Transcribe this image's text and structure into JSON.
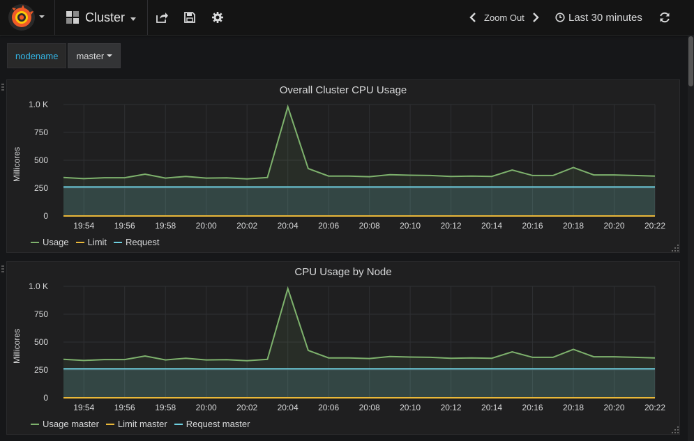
{
  "navbar": {
    "dashboard_title": "Cluster",
    "zoom_out_label": "Zoom Out",
    "time_range_label": "Last 30 minutes",
    "icons": [
      "grafana-logo-icon",
      "dashboard-grid-icon",
      "share-icon",
      "save-icon",
      "settings-gear-icon",
      "chevron-left-icon",
      "chevron-right-icon",
      "clock-icon",
      "refresh-icon"
    ]
  },
  "variables": [
    {
      "label": "nodename",
      "value": "master"
    }
  ],
  "colors": {
    "usage": "#7eb26d",
    "limit": "#eab839",
    "request": "#6ed0e0",
    "background": "#161719",
    "panel": "#1f1f20"
  },
  "panels": [
    {
      "title": "Overall Cluster CPU Usage",
      "ylabel": "Millicores",
      "legend": [
        "Usage",
        "Limit",
        "Request"
      ],
      "chart_data": {
        "type": "line",
        "x": [
          "19:53",
          "19:54",
          "19:55",
          "19:56",
          "19:57",
          "19:58",
          "19:59",
          "20:00",
          "20:01",
          "20:02",
          "20:03",
          "20:04",
          "20:05",
          "20:06",
          "20:07",
          "20:08",
          "20:09",
          "20:10",
          "20:11",
          "20:12",
          "20:13",
          "20:14",
          "20:15",
          "20:16",
          "20:17",
          "20:18",
          "20:19",
          "20:20",
          "20:21",
          "20:22"
        ],
        "tick_labels": [
          "19:54",
          "19:56",
          "19:58",
          "20:00",
          "20:02",
          "20:04",
          "20:06",
          "20:08",
          "20:10",
          "20:12",
          "20:14",
          "20:16",
          "20:18",
          "20:20",
          "20:22"
        ],
        "y_ticks": [
          "0",
          "250",
          "500",
          "750",
          "1.0 K"
        ],
        "ylim": [
          0,
          1000
        ],
        "series": [
          {
            "name": "Usage",
            "values": [
              345,
              335,
              343,
              343,
              375,
              340,
              355,
              340,
              342,
              333,
              345,
              980,
              425,
              358,
              358,
              352,
              370,
              366,
              363,
              355,
              358,
              355,
              412,
              363,
              363,
              435,
              368,
              368,
              363,
              358
            ]
          },
          {
            "name": "Limit",
            "values": [
              0,
              0,
              0,
              0,
              0,
              0,
              0,
              0,
              0,
              0,
              0,
              0,
              0,
              0,
              0,
              0,
              0,
              0,
              0,
              0,
              0,
              0,
              0,
              0,
              0,
              0,
              0,
              0,
              0,
              0
            ]
          },
          {
            "name": "Request",
            "values": [
              260,
              260,
              260,
              260,
              260,
              260,
              260,
              260,
              260,
              260,
              260,
              260,
              260,
              260,
              260,
              260,
              260,
              260,
              260,
              260,
              260,
              260,
              260,
              260,
              260,
              260,
              260,
              260,
              260,
              260
            ]
          }
        ]
      }
    },
    {
      "title": "CPU Usage by Node",
      "ylabel": "Millicores",
      "legend": [
        "Usage master",
        "Limit master",
        "Request master"
      ],
      "chart_data": {
        "type": "line",
        "x": [
          "19:53",
          "19:54",
          "19:55",
          "19:56",
          "19:57",
          "19:58",
          "19:59",
          "20:00",
          "20:01",
          "20:02",
          "20:03",
          "20:04",
          "20:05",
          "20:06",
          "20:07",
          "20:08",
          "20:09",
          "20:10",
          "20:11",
          "20:12",
          "20:13",
          "20:14",
          "20:15",
          "20:16",
          "20:17",
          "20:18",
          "20:19",
          "20:20",
          "20:21",
          "20:22"
        ],
        "tick_labels": [
          "19:54",
          "19:56",
          "19:58",
          "20:00",
          "20:02",
          "20:04",
          "20:06",
          "20:08",
          "20:10",
          "20:12",
          "20:14",
          "20:16",
          "20:18",
          "20:20",
          "20:22"
        ],
        "y_ticks": [
          "0",
          "250",
          "500",
          "750",
          "1.0 K"
        ],
        "ylim": [
          0,
          1000
        ],
        "series": [
          {
            "name": "Usage master",
            "values": [
              345,
              335,
              343,
              343,
              375,
              340,
              355,
              340,
              342,
              333,
              345,
              980,
              425,
              358,
              358,
              352,
              370,
              366,
              363,
              355,
              358,
              355,
              412,
              363,
              363,
              435,
              368,
              368,
              363,
              358
            ]
          },
          {
            "name": "Limit master",
            "values": [
              0,
              0,
              0,
              0,
              0,
              0,
              0,
              0,
              0,
              0,
              0,
              0,
              0,
              0,
              0,
              0,
              0,
              0,
              0,
              0,
              0,
              0,
              0,
              0,
              0,
              0,
              0,
              0,
              0,
              0
            ]
          },
          {
            "name": "Request master",
            "values": [
              260,
              260,
              260,
              260,
              260,
              260,
              260,
              260,
              260,
              260,
              260,
              260,
              260,
              260,
              260,
              260,
              260,
              260,
              260,
              260,
              260,
              260,
              260,
              260,
              260,
              260,
              260,
              260,
              260,
              260
            ]
          }
        ]
      }
    }
  ]
}
